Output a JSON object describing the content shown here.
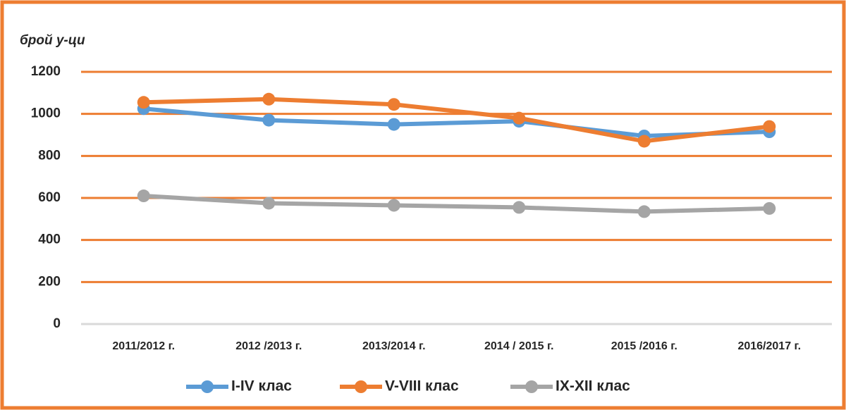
{
  "chart_data": {
    "type": "line",
    "y_label": "брой у-ци",
    "categories": [
      "2011/2012 г.",
      "2012 /2013 г.",
      "2013/2014 г.",
      "2014 / 2015 г.",
      "2015 /2016 г.",
      "2016/2017 г."
    ],
    "series": [
      {
        "name": "I-IV клас",
        "color": "#5b9bd5",
        "values": [
          1025,
          970,
          950,
          965,
          895,
          915
        ]
      },
      {
        "name": "V-VIII клас",
        "color": "#ed7d31",
        "values": [
          1055,
          1070,
          1045,
          980,
          870,
          940
        ]
      },
      {
        "name": "IX-XII клас",
        "color": "#a5a5a5",
        "values": [
          610,
          575,
          565,
          555,
          535,
          550
        ]
      }
    ],
    "ylim": [
      0,
      1200
    ],
    "yticks": [
      0,
      200,
      400,
      600,
      800,
      1000,
      1200
    ],
    "grid": true,
    "grid_color": "#ed7d31",
    "legend": "bottom"
  }
}
